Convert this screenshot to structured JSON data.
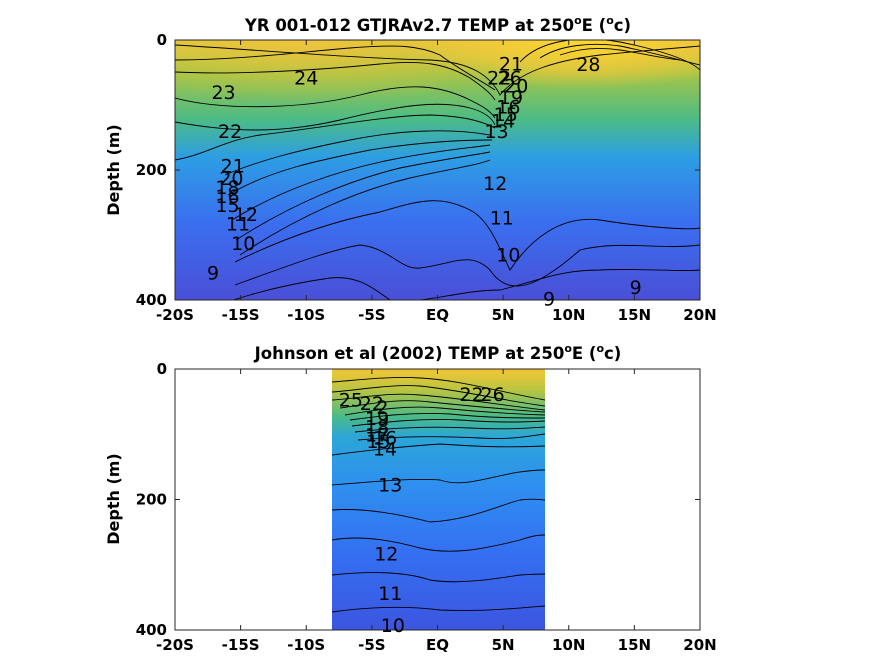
{
  "chart_data": [
    {
      "type": "contour",
      "title_main": "YR 001-012 GTJRAv2.7 TEMP at 250",
      "title_super": "o",
      "title_end": "E (",
      "title_unit_super": "o",
      "title_unit_end": "c)",
      "ylabel": "Depth (m)",
      "xlim": [
        -20,
        20
      ],
      "ylim": [
        0,
        400
      ],
      "x_ticks": [
        -20,
        -15,
        -10,
        -5,
        0,
        5,
        10,
        15,
        20
      ],
      "x_tick_labels": [
        "-20S",
        "-15S",
        "-10S",
        "-5S",
        "EQ",
        "5N",
        "10N",
        "15N",
        "20N"
      ],
      "y_ticks": [
        0,
        200,
        400
      ],
      "y_tick_labels": [
        "0",
        "200",
        "400"
      ],
      "data_x_range": [
        -20,
        20
      ],
      "contour_labels": [
        {
          "x": 5.6,
          "y": 36,
          "text": "21"
        },
        {
          "x": 11.5,
          "y": 37,
          "text": "28"
        },
        {
          "x": -10,
          "y": 58,
          "text": "24"
        },
        {
          "x": -16.3,
          "y": 80,
          "text": "23"
        },
        {
          "x": 4.7,
          "y": 58,
          "text": "22"
        },
        {
          "x": 5.5,
          "y": 58,
          "text": "26"
        },
        {
          "x": 6.0,
          "y": 70,
          "text": "20"
        },
        {
          "x": 5.6,
          "y": 88,
          "text": "19"
        },
        {
          "x": 5.4,
          "y": 102,
          "text": "16"
        },
        {
          "x": 5.2,
          "y": 114,
          "text": "15"
        },
        {
          "x": 5.0,
          "y": 124,
          "text": "14"
        },
        {
          "x": 4.5,
          "y": 140,
          "text": "13"
        },
        {
          "x": -15.8,
          "y": 140,
          "text": "22"
        },
        {
          "x": -15.6,
          "y": 193,
          "text": "21"
        },
        {
          "x": -15.7,
          "y": 212,
          "text": "20"
        },
        {
          "x": -16.0,
          "y": 226,
          "text": "18"
        },
        {
          "x": -16.0,
          "y": 240,
          "text": "16"
        },
        {
          "x": -16.0,
          "y": 254,
          "text": "15"
        },
        {
          "x": -14.6,
          "y": 268,
          "text": "12"
        },
        {
          "x": -15.2,
          "y": 282,
          "text": "11"
        },
        {
          "x": -14.8,
          "y": 312,
          "text": "10"
        },
        {
          "x": -17.1,
          "y": 358,
          "text": "9"
        },
        {
          "x": 4.4,
          "y": 220,
          "text": "12"
        },
        {
          "x": 4.9,
          "y": 273,
          "text": "11"
        },
        {
          "x": 5.4,
          "y": 330,
          "text": "10"
        },
        {
          "x": 8.5,
          "y": 398,
          "text": "9"
        },
        {
          "x": 15.1,
          "y": 380,
          "text": "9"
        }
      ]
    },
    {
      "type": "contour",
      "title_main": "Johnson et al (2002) TEMP at 250",
      "title_super": "o",
      "title_end": "E (",
      "title_unit_super": "o",
      "title_unit_end": "c)",
      "ylabel": "Depth (m)",
      "xlim": [
        -20,
        20
      ],
      "ylim": [
        0,
        400
      ],
      "x_ticks": [
        -20,
        -15,
        -10,
        -5,
        0,
        5,
        10,
        15,
        20
      ],
      "x_tick_labels": [
        "-20S",
        "-15S",
        "-10S",
        "-5S",
        "EQ",
        "5N",
        "10N",
        "15N",
        "20N"
      ],
      "y_ticks": [
        0,
        200,
        400
      ],
      "y_tick_labels": [
        "0",
        "200",
        "400"
      ],
      "data_x_range": [
        -8,
        8.2
      ],
      "contour_labels": [
        {
          "x": -6.6,
          "y": 47,
          "text": "25"
        },
        {
          "x": -5.0,
          "y": 52,
          "text": "22"
        },
        {
          "x": -4.2,
          "y": 58,
          "text": "2"
        },
        {
          "x": -4.6,
          "y": 75,
          "text": "19"
        },
        {
          "x": -4.6,
          "y": 88,
          "text": "18"
        },
        {
          "x": -4.6,
          "y": 100,
          "text": "17"
        },
        {
          "x": -4.5,
          "y": 110,
          "text": "15"
        },
        {
          "x": -4.0,
          "y": 105,
          "text": "16"
        },
        {
          "x": -4.0,
          "y": 122,
          "text": "14"
        },
        {
          "x": 2.6,
          "y": 38,
          "text": "22"
        },
        {
          "x": 4.2,
          "y": 38,
          "text": "26"
        },
        {
          "x": -3.6,
          "y": 177,
          "text": "13"
        },
        {
          "x": -3.9,
          "y": 283,
          "text": "12"
        },
        {
          "x": -3.6,
          "y": 343,
          "text": "11"
        },
        {
          "x": -3.4,
          "y": 392,
          "text": "10"
        }
      ]
    }
  ]
}
